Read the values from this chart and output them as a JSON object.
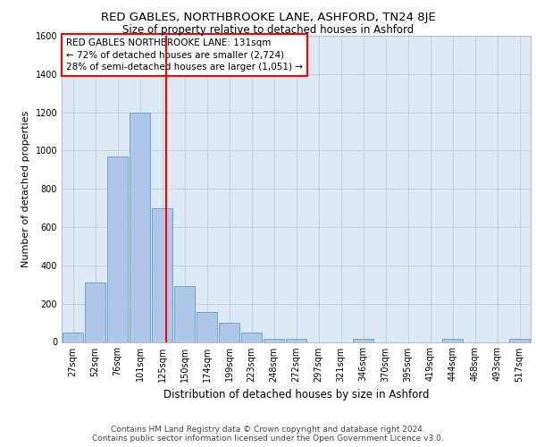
{
  "title1": "RED GABLES, NORTHBROOKE LANE, ASHFORD, TN24 8JE",
  "title2": "Size of property relative to detached houses in Ashford",
  "xlabel": "Distribution of detached houses by size in Ashford",
  "ylabel": "Number of detached properties",
  "footer1": "Contains HM Land Registry data © Crown copyright and database right 2024.",
  "footer2": "Contains public sector information licensed under the Open Government Licence v3.0.",
  "annotation_line1": "RED GABLES NORTHBROOKE LANE: 131sqm",
  "annotation_line2": "← 72% of detached houses are smaller (2,724)",
  "annotation_line3": "28% of semi-detached houses are larger (1,051) →",
  "property_size": 131,
  "bar_categories": [
    "27sqm",
    "52sqm",
    "76sqm",
    "101sqm",
    "125sqm",
    "150sqm",
    "174sqm",
    "199sqm",
    "223sqm",
    "248sqm",
    "272sqm",
    "297sqm",
    "321sqm",
    "346sqm",
    "370sqm",
    "395sqm",
    "419sqm",
    "444sqm",
    "468sqm",
    "493sqm",
    "517sqm"
  ],
  "bar_values": [
    50,
    310,
    970,
    1200,
    700,
    290,
    155,
    100,
    50,
    15,
    15,
    0,
    0,
    15,
    0,
    0,
    0,
    15,
    0,
    0,
    15
  ],
  "bar_color": "#aec6e8",
  "bar_edge_color": "#5a9fd4",
  "vline_color": "red",
  "ylim": [
    0,
    1600
  ],
  "yticks": [
    0,
    200,
    400,
    600,
    800,
    1000,
    1200,
    1400,
    1600
  ],
  "grid_color": "#c8d0d8",
  "bg_color": "#dce9f5",
  "title1_fontsize": 9.5,
  "title2_fontsize": 8.5,
  "xlabel_fontsize": 8.5,
  "ylabel_fontsize": 8,
  "tick_fontsize": 7,
  "annotation_fontsize": 7.5,
  "footer_fontsize": 6.5
}
